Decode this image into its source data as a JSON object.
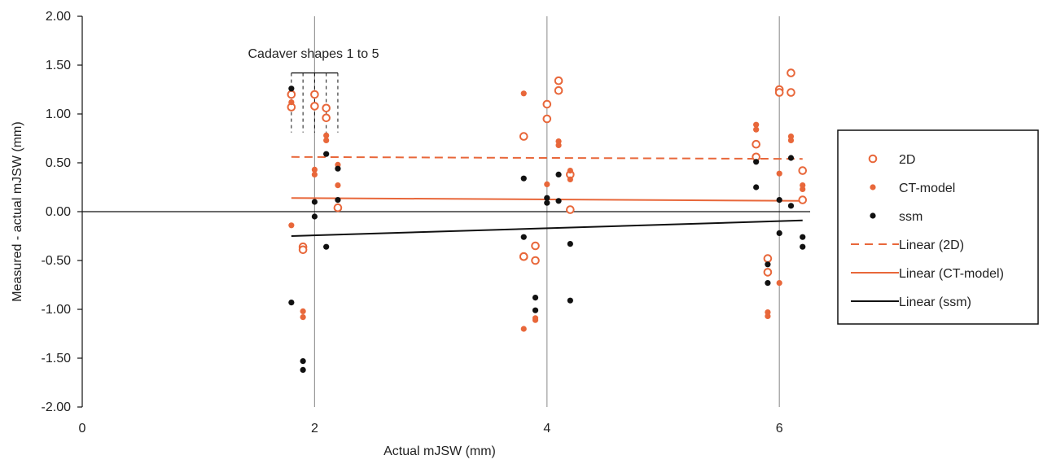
{
  "chart_data": {
    "type": "scatter",
    "xlabel": "Actual mJSW (mm)",
    "ylabel": "Measured - actual mJSW (mm)",
    "xlim": [
      0,
      7
    ],
    "ylim": [
      -2.0,
      2.0
    ],
    "x_ticks": [
      "0",
      "2",
      "4",
      "6"
    ],
    "x_tick_values": [
      0,
      2,
      4,
      6
    ],
    "y_ticks": [
      "2.00",
      "1.50",
      "1.00",
      "0.50",
      "0.00",
      "-0.50",
      "-1.00",
      "-1.50",
      "-2.00"
    ],
    "y_tick_values": [
      2.0,
      1.5,
      1.0,
      0.5,
      0.0,
      -0.5,
      -1.0,
      -1.5,
      -2.0
    ],
    "vertical_gridlines": [
      2,
      4,
      6
    ],
    "annotation": "Cadaver shapes 1 to 5",
    "bracket_x": [
      1.8,
      1.9,
      2.0,
      2.1,
      2.2
    ],
    "legend_position": "right",
    "series": [
      {
        "name": "2D",
        "marker": "open-circle",
        "color": "#E8673A",
        "points": [
          [
            1.8,
            1.2
          ],
          [
            1.8,
            1.07
          ],
          [
            1.9,
            -0.36
          ],
          [
            1.9,
            -0.39
          ],
          [
            2.0,
            1.2
          ],
          [
            2.0,
            1.08
          ],
          [
            2.1,
            1.06
          ],
          [
            2.1,
            0.96
          ],
          [
            2.2,
            0.04
          ],
          [
            3.8,
            0.77
          ],
          [
            3.8,
            -0.46
          ],
          [
            3.8,
            -0.46
          ],
          [
            3.9,
            -0.35
          ],
          [
            3.9,
            -0.5
          ],
          [
            4.0,
            1.1
          ],
          [
            4.0,
            0.95
          ],
          [
            4.1,
            1.34
          ],
          [
            4.1,
            1.24
          ],
          [
            4.2,
            0.38
          ],
          [
            4.2,
            0.02
          ],
          [
            5.8,
            0.69
          ],
          [
            5.8,
            0.56
          ],
          [
            5.9,
            -0.48
          ],
          [
            5.9,
            -0.62
          ],
          [
            6.0,
            1.25
          ],
          [
            6.0,
            1.22
          ],
          [
            6.1,
            1.42
          ],
          [
            6.1,
            1.22
          ],
          [
            6.2,
            0.42
          ],
          [
            6.2,
            0.12
          ]
        ]
      },
      {
        "name": "CT-model",
        "marker": "filled-circle",
        "color": "#E8673A",
        "points": [
          [
            1.8,
            -0.14
          ],
          [
            1.8,
            1.12
          ],
          [
            1.9,
            -1.02
          ],
          [
            1.9,
            -1.08
          ],
          [
            2.0,
            0.43
          ],
          [
            2.0,
            0.38
          ],
          [
            2.1,
            0.78
          ],
          [
            2.1,
            0.73
          ],
          [
            2.2,
            0.48
          ],
          [
            2.2,
            0.27
          ],
          [
            3.8,
            1.21
          ],
          [
            3.8,
            -1.2
          ],
          [
            3.9,
            -1.09
          ],
          [
            3.9,
            -1.11
          ],
          [
            4.0,
            0.28
          ],
          [
            4.1,
            0.72
          ],
          [
            4.1,
            0.68
          ],
          [
            4.2,
            0.42
          ],
          [
            4.2,
            0.33
          ],
          [
            5.8,
            0.89
          ],
          [
            5.8,
            0.84
          ],
          [
            5.9,
            -1.03
          ],
          [
            5.9,
            -1.07
          ],
          [
            6.0,
            0.39
          ],
          [
            6.0,
            -0.73
          ],
          [
            6.1,
            0.77
          ],
          [
            6.1,
            0.73
          ],
          [
            6.2,
            0.27
          ],
          [
            6.2,
            0.23
          ]
        ]
      },
      {
        "name": "ssm",
        "marker": "filled-circle",
        "color": "#111111",
        "points": [
          [
            1.8,
            1.26
          ],
          [
            1.8,
            -0.93
          ],
          [
            1.9,
            -1.53
          ],
          [
            1.9,
            -1.62
          ],
          [
            2.0,
            0.1
          ],
          [
            2.0,
            -0.05
          ],
          [
            2.1,
            0.59
          ],
          [
            2.1,
            -0.36
          ],
          [
            2.2,
            0.44
          ],
          [
            2.2,
            0.12
          ],
          [
            3.8,
            0.34
          ],
          [
            3.8,
            -0.26
          ],
          [
            3.9,
            -0.88
          ],
          [
            3.9,
            -1.01
          ],
          [
            4.0,
            0.14
          ],
          [
            4.0,
            0.09
          ],
          [
            4.1,
            0.38
          ],
          [
            4.1,
            0.11
          ],
          [
            4.2,
            -0.33
          ],
          [
            4.2,
            -0.91
          ],
          [
            5.8,
            0.51
          ],
          [
            5.8,
            0.25
          ],
          [
            5.9,
            -0.54
          ],
          [
            5.9,
            -0.73
          ],
          [
            6.0,
            0.12
          ],
          [
            6.0,
            -0.22
          ],
          [
            6.1,
            0.55
          ],
          [
            6.1,
            0.06
          ],
          [
            6.2,
            -0.26
          ],
          [
            6.2,
            -0.36
          ]
        ]
      }
    ],
    "trendlines": [
      {
        "name": "Linear (2D)",
        "color": "#E8673A",
        "style": "dashed",
        "x": [
          1.8,
          6.2
        ],
        "y": [
          0.56,
          0.54
        ]
      },
      {
        "name": "Linear (CT-model)",
        "color": "#E8673A",
        "style": "solid",
        "x": [
          1.8,
          6.2
        ],
        "y": [
          0.14,
          0.11
        ]
      },
      {
        "name": "Linear (ssm)",
        "color": "#111111",
        "style": "solid",
        "x": [
          1.8,
          6.2
        ],
        "y": [
          -0.25,
          -0.09
        ]
      }
    ]
  }
}
